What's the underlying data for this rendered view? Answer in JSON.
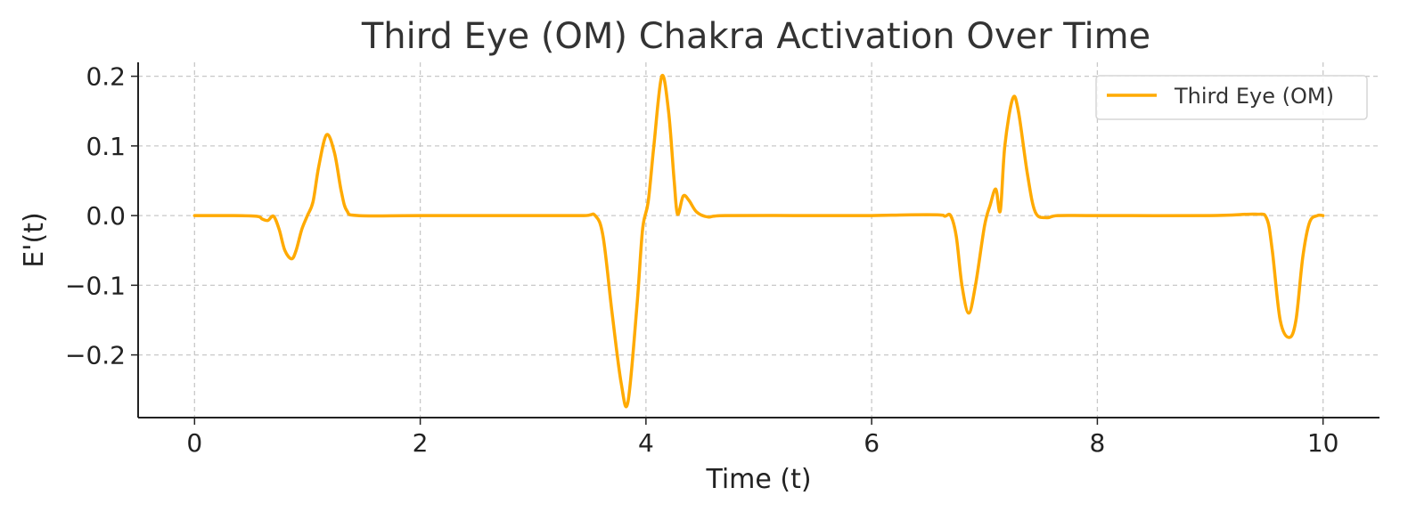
{
  "chart_data": {
    "type": "line",
    "title": "Third Eye (OM) Chakra Activation Over Time",
    "xlabel": "Time (t)",
    "ylabel": "E'(t)",
    "xlim": [
      -0.5,
      10.5
    ],
    "ylim": [
      -0.29,
      0.22
    ],
    "xticks": [
      0,
      2,
      4,
      6,
      8,
      10
    ],
    "xtick_labels": [
      "0",
      "2",
      "4",
      "6",
      "8",
      "10"
    ],
    "yticks": [
      0.2,
      0.1,
      0.0,
      -0.1,
      -0.2
    ],
    "ytick_labels": [
      "0.2",
      "0.1",
      "0.0",
      "−0.1",
      "−0.2"
    ],
    "grid": true,
    "legend_position": "upper-right",
    "series": [
      {
        "name": "Third Eye (OM)",
        "color": "#FFAA00",
        "x": [
          0,
          0.3,
          0.55,
          0.6,
          0.65,
          0.7,
          0.75,
          0.8,
          0.86,
          0.9,
          0.95,
          1.0,
          1.05,
          1.1,
          1.17,
          1.24,
          1.3,
          1.35,
          1.45,
          2.0,
          3.0,
          3.45,
          3.55,
          3.62,
          3.7,
          3.78,
          3.84,
          3.92,
          3.97,
          4.02,
          4.07,
          4.14,
          4.2,
          4.25,
          4.28,
          4.33,
          4.38,
          4.45,
          4.55,
          4.7,
          5.5,
          6.0,
          6.3,
          6.6,
          6.65,
          6.7,
          6.75,
          6.8,
          6.86,
          6.92,
          7.0,
          7.05,
          7.1,
          7.14,
          7.18,
          7.25,
          7.3,
          7.38,
          7.45,
          7.55,
          7.65,
          8.0,
          9.0,
          9.4,
          9.5,
          9.55,
          9.62,
          9.7,
          9.76,
          9.82,
          9.88,
          9.95,
          10.0
        ],
        "y": [
          0.0,
          0.0,
          -0.001,
          -0.005,
          -0.007,
          -0.001,
          -0.02,
          -0.05,
          -0.062,
          -0.05,
          -0.02,
          0.0,
          0.02,
          0.07,
          0.116,
          0.09,
          0.035,
          0.007,
          0.0,
          0.0,
          0.0,
          0.0,
          0.0,
          -0.03,
          -0.14,
          -0.24,
          -0.268,
          -0.13,
          -0.02,
          0.02,
          0.1,
          0.2,
          0.15,
          0.05,
          0.002,
          0.028,
          0.022,
          0.005,
          -0.002,
          0.0,
          0.0,
          0.0,
          0.001,
          0.001,
          -0.001,
          0.0,
          -0.03,
          -0.1,
          -0.14,
          -0.1,
          -0.015,
          0.015,
          0.038,
          0.007,
          0.1,
          0.168,
          0.15,
          0.06,
          0.005,
          -0.003,
          0.0,
          0.0,
          0.0,
          0.002,
          -0.004,
          -0.05,
          -0.15,
          -0.175,
          -0.15,
          -0.06,
          -0.01,
          0.0,
          0.0
        ]
      }
    ]
  }
}
